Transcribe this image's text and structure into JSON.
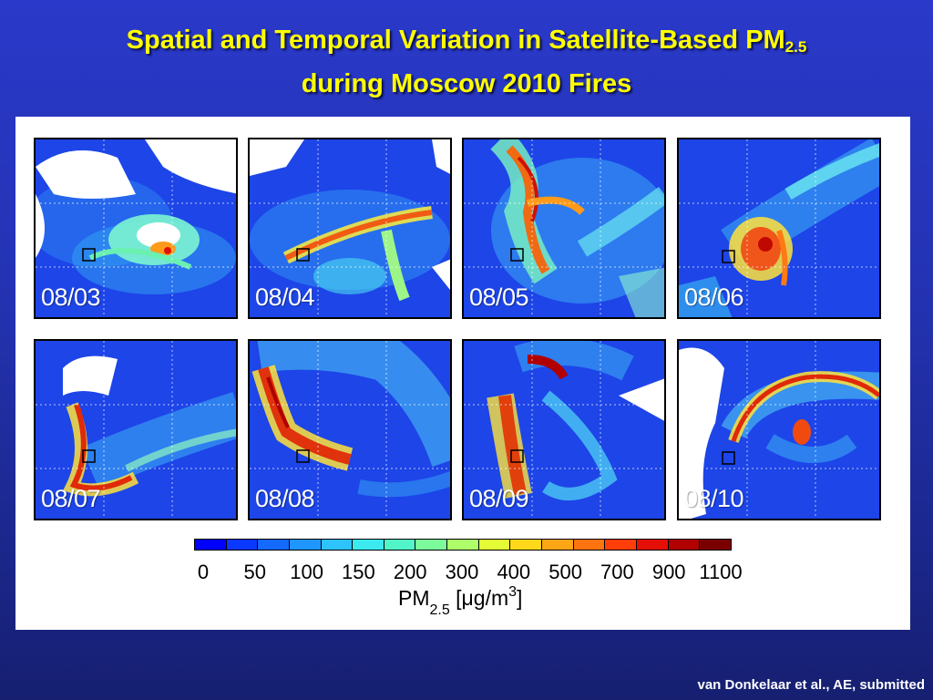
{
  "slide": {
    "title_line1": "Spatial and Temporal Variation in Satellite-Based PM",
    "title_sub": "2.5",
    "title_line2": "during Moscow 2010 Fires",
    "credit": "van Donkelaar et al., AE, submitted"
  },
  "maps": [
    {
      "date": "08/03"
    },
    {
      "date": "08/04"
    },
    {
      "date": "08/05"
    },
    {
      "date": "08/06"
    },
    {
      "date": "08/07"
    },
    {
      "date": "08/08"
    },
    {
      "date": "08/09"
    },
    {
      "date": "08/10"
    }
  ],
  "colorbar": {
    "colors": [
      "#0000ff",
      "#0a38ff",
      "#1469ff",
      "#1f96ff",
      "#2ec3ff",
      "#3ce9ef",
      "#52f5c8",
      "#7cfb9a",
      "#aefd6a",
      "#e4fc36",
      "#ffd81a",
      "#ffa616",
      "#ff7410",
      "#ff3e0a",
      "#e50f06",
      "#b00000",
      "#7a0000"
    ],
    "tick_labels": [
      "0",
      "50",
      "100",
      "150",
      "200",
      "300",
      "400",
      "500",
      "700",
      "900",
      "1100"
    ],
    "label_main": "PM",
    "label_sub": "2.5",
    "label_unit_open": " [",
    "label_mu": "μ",
    "label_unit": "g/m",
    "label_sup": "3",
    "label_close": "]"
  }
}
